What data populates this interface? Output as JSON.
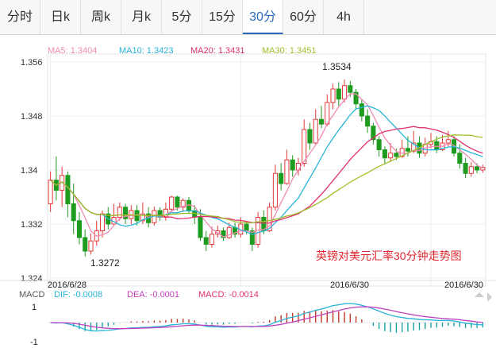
{
  "tabs": [
    {
      "label": "分时",
      "active": false
    },
    {
      "label": "日k",
      "active": false
    },
    {
      "label": "周k",
      "active": false
    },
    {
      "label": "月k",
      "active": false
    },
    {
      "label": "5分",
      "active": false
    },
    {
      "label": "15分",
      "active": false
    },
    {
      "label": "30分",
      "active": true
    },
    {
      "label": "60分",
      "active": false
    },
    {
      "label": "4h",
      "active": false
    }
  ],
  "chart_data": {
    "type": "candlestick",
    "title": "英镑对美元汇率30分钟走势图",
    "ylim": [
      1.324,
      1.356
    ],
    "yticks": [
      "1.356",
      "1.348",
      "1.34",
      "1.332",
      "1.324"
    ],
    "xtick_labels": [
      "2016/6/28",
      "2016/6/30",
      "2016/6/30"
    ],
    "high_label": "1.3534",
    "low_label": "1.3272",
    "ma_legend": [
      {
        "label": "MA5: 1.3404",
        "color": "#f08cb4"
      },
      {
        "label": "MA10: 1.3423",
        "color": "#28b4d8"
      },
      {
        "label": "MA20: 1.3431",
        "color": "#e0316e"
      },
      {
        "label": "MA30: 1.3451",
        "color": "#9cbf2a"
      }
    ],
    "candles": [
      [
        1.335,
        1.3385,
        1.3398,
        1.3338
      ],
      [
        1.3385,
        1.337,
        1.342,
        1.3355
      ],
      [
        1.337,
        1.3392,
        1.3405,
        1.3345
      ],
      [
        1.3392,
        1.335,
        1.3398,
        1.333
      ],
      [
        1.335,
        1.3325,
        1.338,
        1.3305
      ],
      [
        1.3325,
        1.33,
        1.3338,
        1.329
      ],
      [
        1.33,
        1.328,
        1.3312,
        1.3272
      ],
      [
        1.328,
        1.3295,
        1.3306,
        1.3275
      ],
      [
        1.3295,
        1.331,
        1.3325,
        1.3288
      ],
      [
        1.331,
        1.3335,
        1.334,
        1.33
      ],
      [
        1.3335,
        1.332,
        1.3345,
        1.3312
      ],
      [
        1.332,
        1.333,
        1.335,
        1.3318
      ],
      [
        1.333,
        1.3345,
        1.3352,
        1.3325
      ],
      [
        1.3345,
        1.3328,
        1.335,
        1.332
      ],
      [
        1.3328,
        1.334,
        1.3348,
        1.332
      ],
      [
        1.334,
        1.3325,
        1.3348,
        1.3318
      ],
      [
        1.3325,
        1.3335,
        1.3352,
        1.332
      ],
      [
        1.3335,
        1.3322,
        1.3345,
        1.3315
      ],
      [
        1.3322,
        1.334,
        1.3346,
        1.3318
      ],
      [
        1.334,
        1.333,
        1.3345,
        1.3325
      ],
      [
        1.333,
        1.3342,
        1.3352,
        1.3325
      ],
      [
        1.3342,
        1.336,
        1.3362,
        1.3338
      ],
      [
        1.336,
        1.3345,
        1.3362,
        1.334
      ],
      [
        1.3345,
        1.3355,
        1.3358,
        1.3338
      ],
      [
        1.3355,
        1.334,
        1.336,
        1.3335
      ],
      [
        1.334,
        1.333,
        1.3348,
        1.332
      ],
      [
        1.333,
        1.33,
        1.3342,
        1.3295
      ],
      [
        1.33,
        1.329,
        1.331,
        1.328
      ],
      [
        1.329,
        1.3305,
        1.3316,
        1.3285
      ],
      [
        1.3305,
        1.331,
        1.3318,
        1.33
      ],
      [
        1.331,
        1.33,
        1.3315,
        1.3295
      ],
      [
        1.33,
        1.3315,
        1.3322,
        1.3298
      ],
      [
        1.3315,
        1.3305,
        1.3322,
        1.33
      ],
      [
        1.3305,
        1.332,
        1.333,
        1.33
      ],
      [
        1.332,
        1.331,
        1.3325,
        1.3305
      ],
      [
        1.331,
        1.329,
        1.3315,
        1.328
      ],
      [
        1.329,
        1.333,
        1.3338,
        1.3285
      ],
      [
        1.333,
        1.331,
        1.334,
        1.3305
      ],
      [
        1.331,
        1.3345,
        1.3352,
        1.3308
      ],
      [
        1.3345,
        1.3395,
        1.3408,
        1.334
      ],
      [
        1.3395,
        1.338,
        1.341,
        1.337
      ],
      [
        1.338,
        1.3415,
        1.343,
        1.3378
      ],
      [
        1.3415,
        1.34,
        1.3422,
        1.339
      ],
      [
        1.34,
        1.341,
        1.3418,
        1.3392
      ],
      [
        1.341,
        1.346,
        1.3475,
        1.3405
      ],
      [
        1.346,
        1.344,
        1.347,
        1.343
      ],
      [
        1.344,
        1.3475,
        1.349,
        1.3438
      ],
      [
        1.3475,
        1.3468,
        1.3495,
        1.3462
      ],
      [
        1.3468,
        1.35,
        1.3512,
        1.3465
      ],
      [
        1.35,
        1.352,
        1.3528,
        1.349
      ],
      [
        1.352,
        1.3505,
        1.353,
        1.3495
      ],
      [
        1.3505,
        1.3525,
        1.3534,
        1.35
      ],
      [
        1.3525,
        1.3515,
        1.3532,
        1.3508
      ],
      [
        1.3515,
        1.3498,
        1.352,
        1.349
      ],
      [
        1.3498,
        1.348,
        1.3505,
        1.3472
      ],
      [
        1.348,
        1.3465,
        1.349,
        1.3455
      ],
      [
        1.3465,
        1.3445,
        1.347,
        1.3438
      ],
      [
        1.3445,
        1.343,
        1.345,
        1.342
      ],
      [
        1.343,
        1.3418,
        1.3435,
        1.341
      ],
      [
        1.3418,
        1.3425,
        1.344,
        1.3412
      ],
      [
        1.3425,
        1.342,
        1.3432,
        1.3415
      ],
      [
        1.342,
        1.3432,
        1.3445,
        1.3418
      ],
      [
        1.3432,
        1.3428,
        1.345,
        1.342
      ],
      [
        1.3428,
        1.344,
        1.3458,
        1.3425
      ],
      [
        1.344,
        1.3425,
        1.345,
        1.3418
      ],
      [
        1.3425,
        1.3438,
        1.3448,
        1.342
      ],
      [
        1.3438,
        1.3442,
        1.3455,
        1.3432
      ],
      [
        1.3442,
        1.343,
        1.345,
        1.3425
      ],
      [
        1.343,
        1.344,
        1.3452,
        1.3428
      ],
      [
        1.344,
        1.3445,
        1.3458,
        1.3435
      ],
      [
        1.3445,
        1.3425,
        1.345,
        1.342
      ],
      [
        1.3425,
        1.341,
        1.3438,
        1.3402
      ],
      [
        1.341,
        1.3395,
        1.3418,
        1.3388
      ],
      [
        1.3395,
        1.3405,
        1.3412,
        1.339
      ],
      [
        1.3405,
        1.34,
        1.341,
        1.3395
      ],
      [
        1.34,
        1.3404,
        1.3408,
        1.3396
      ]
    ],
    "macd_legend": [
      {
        "label": "MACD",
        "color": "#555555"
      },
      {
        "label": "DIF: -0.0008",
        "color": "#28b4d8"
      },
      {
        "label": "DEA: -0.0001",
        "color": "#c040c0"
      },
      {
        "label": "MACD: -0.0014",
        "color": "#e0316e"
      }
    ],
    "macd_yticks": [
      "1",
      "-1"
    ]
  }
}
